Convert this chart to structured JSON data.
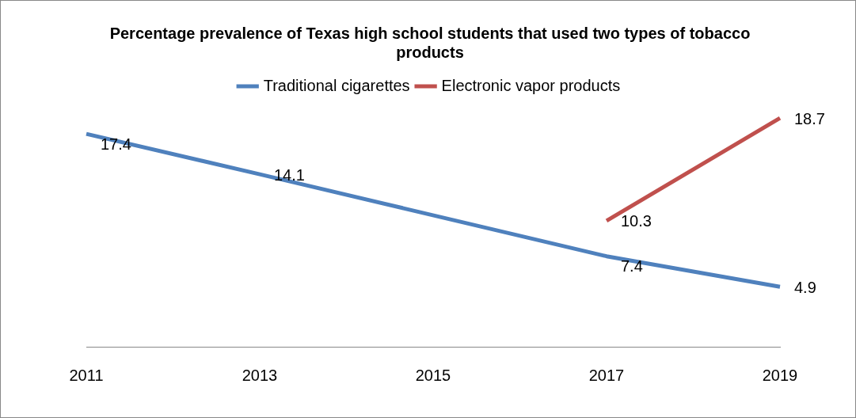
{
  "chart_data": {
    "type": "line",
    "title": "Percentage prevalence of Texas high school students that used two types of tobacco products",
    "categories": [
      "2011",
      "2013",
      "2015",
      "2017",
      "2019"
    ],
    "series": [
      {
        "name": "Traditional cigarettes",
        "color": "#4f81bd",
        "values": [
          17.4,
          14.1,
          null,
          7.4,
          4.9
        ]
      },
      {
        "name": "Electronic vapor products",
        "color": "#c0504d",
        "values": [
          null,
          null,
          null,
          10.3,
          18.7
        ]
      }
    ],
    "data_labels": true,
    "legend": "top",
    "marker": "none"
  }
}
